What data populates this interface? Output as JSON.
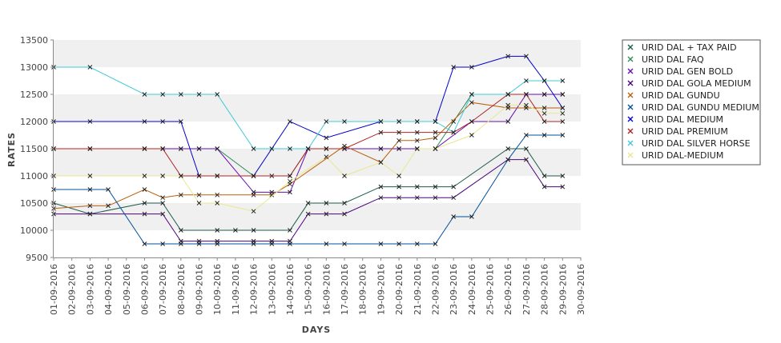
{
  "chart_data": {
    "type": "line",
    "xlabel": "DAYS",
    "ylabel": "RATES",
    "ylim": [
      9500,
      13500
    ],
    "y_ticks": [
      9500,
      10000,
      10500,
      11000,
      11500,
      12000,
      12500,
      13000,
      13500
    ],
    "grid": "alternating horizontal bands",
    "legend_position": "right",
    "categories": [
      "01-09-2016",
      "02-09-2016",
      "03-09-2016",
      "04-09-2016",
      "05-09-2016",
      "06-09-2016",
      "07-09-2016",
      "08-09-2016",
      "09-09-2016",
      "10-09-2016",
      "11-09-2016",
      "12-09-2016",
      "13-09-2016",
      "14-09-2016",
      "15-09-2016",
      "16-09-2016",
      "17-09-2016",
      "18-09-2016",
      "19-09-2016",
      "20-09-2016",
      "21-09-2016",
      "22-09-2016",
      "23-09-2016",
      "24-09-2016",
      "25-09-2016",
      "26-09-2016",
      "27-09-2016",
      "28-09-2016",
      "29-09-2016",
      "30-09-2016"
    ],
    "series": [
      {
        "name": "URID DAL + TAX PAID",
        "color": "#1a5c4a",
        "points": [
          [
            0,
            10500
          ],
          [
            2,
            10300
          ],
          [
            5,
            10500
          ],
          [
            6,
            10500
          ],
          [
            7,
            10000
          ],
          [
            9,
            10000
          ],
          [
            10,
            10000
          ],
          [
            11,
            10000
          ],
          [
            13,
            10000
          ],
          [
            14,
            10500
          ],
          [
            15,
            10500
          ],
          [
            16,
            10500
          ],
          [
            18,
            10800
          ],
          [
            19,
            10800
          ],
          [
            20,
            10800
          ],
          [
            21,
            10800
          ],
          [
            22,
            10800
          ],
          [
            25,
            11500
          ],
          [
            26,
            11500
          ],
          [
            27,
            11000
          ],
          [
            28,
            11000
          ]
        ]
      },
      {
        "name": "URID DAL FAQ",
        "color": "#2e8b57",
        "points": [
          [
            0,
            11500
          ],
          [
            2,
            11500
          ],
          [
            5,
            11500
          ],
          [
            6,
            11500
          ],
          [
            7,
            11500
          ],
          [
            8,
            11500
          ],
          [
            9,
            11500
          ],
          [
            11,
            11000
          ],
          [
            12,
            11000
          ],
          [
            13,
            11000
          ],
          [
            14,
            11500
          ],
          [
            15,
            11500
          ],
          [
            16,
            11500
          ],
          [
            18,
            11500
          ],
          [
            19,
            11500
          ],
          [
            20,
            11500
          ],
          [
            21,
            11500
          ],
          [
            22,
            12000
          ],
          [
            23,
            12500
          ],
          [
            25,
            12500
          ],
          [
            26,
            12500
          ],
          [
            27,
            12500
          ],
          [
            28,
            12500
          ]
        ]
      },
      {
        "name": "URID DAL GEN BOLD",
        "color": "#6a0dad",
        "points": [
          [
            0,
            11500
          ],
          [
            2,
            11500
          ],
          [
            5,
            11500
          ],
          [
            6,
            11500
          ],
          [
            7,
            11500
          ],
          [
            8,
            11500
          ],
          [
            9,
            11500
          ],
          [
            11,
            10700
          ],
          [
            12,
            10700
          ],
          [
            13,
            10700
          ],
          [
            14,
            11500
          ],
          [
            15,
            11500
          ],
          [
            16,
            11500
          ],
          [
            18,
            11500
          ],
          [
            19,
            11500
          ],
          [
            20,
            11500
          ],
          [
            21,
            11500
          ],
          [
            23,
            12000
          ],
          [
            25,
            12000
          ],
          [
            26,
            12500
          ],
          [
            27,
            12500
          ],
          [
            28,
            12500
          ]
        ]
      },
      {
        "name": "URID DAL GOLA MEDIUM",
        "color": "#4b0082",
        "points": [
          [
            0,
            10300
          ],
          [
            2,
            10300
          ],
          [
            5,
            10300
          ],
          [
            6,
            10300
          ],
          [
            7,
            9800
          ],
          [
            8,
            9800
          ],
          [
            9,
            9800
          ],
          [
            11,
            9800
          ],
          [
            12,
            9800
          ],
          [
            13,
            9800
          ],
          [
            14,
            10300
          ],
          [
            15,
            10300
          ],
          [
            16,
            10300
          ],
          [
            18,
            10600
          ],
          [
            19,
            10600
          ],
          [
            20,
            10600
          ],
          [
            21,
            10600
          ],
          [
            22,
            10600
          ],
          [
            25,
            11300
          ],
          [
            26,
            11300
          ],
          [
            27,
            10800
          ],
          [
            28,
            10800
          ]
        ]
      },
      {
        "name": "URID DAL GUNDU",
        "color": "#b8600b",
        "points": [
          [
            0,
            10400
          ],
          [
            2,
            10450
          ],
          [
            3,
            10450
          ],
          [
            5,
            10750
          ],
          [
            6,
            10600
          ],
          [
            7,
            10650
          ],
          [
            8,
            10650
          ],
          [
            9,
            10650
          ],
          [
            11,
            10650
          ],
          [
            12,
            10650
          ],
          [
            13,
            10850
          ],
          [
            16,
            11550
          ],
          [
            18,
            11250
          ],
          [
            19,
            11650
          ],
          [
            20,
            11650
          ],
          [
            21,
            11700
          ],
          [
            23,
            12350
          ],
          [
            25,
            12250
          ],
          [
            26,
            12250
          ],
          [
            27,
            12250
          ],
          [
            28,
            12250
          ]
        ]
      },
      {
        "name": "URID DAL GUNDU MEDIUM",
        "color": "#00509e",
        "points": [
          [
            0,
            10750
          ],
          [
            2,
            10750
          ],
          [
            3,
            10750
          ],
          [
            5,
            9750
          ],
          [
            6,
            9750
          ],
          [
            7,
            9750
          ],
          [
            8,
            9750
          ],
          [
            9,
            9750
          ],
          [
            11,
            9750
          ],
          [
            12,
            9750
          ],
          [
            13,
            9750
          ],
          [
            15,
            9750
          ],
          [
            16,
            9750
          ],
          [
            18,
            9750
          ],
          [
            19,
            9750
          ],
          [
            20,
            9750
          ],
          [
            21,
            9750
          ],
          [
            22,
            10250
          ],
          [
            23,
            10250
          ],
          [
            25,
            11300
          ],
          [
            26,
            11750
          ],
          [
            27,
            11750
          ],
          [
            28,
            11750
          ]
        ]
      },
      {
        "name": "URID DAL MEDIUM",
        "color": "#0000cd",
        "points": [
          [
            0,
            12000
          ],
          [
            2,
            12000
          ],
          [
            5,
            12000
          ],
          [
            6,
            12000
          ],
          [
            7,
            12000
          ],
          [
            8,
            11000
          ],
          [
            9,
            11000
          ],
          [
            11,
            11000
          ],
          [
            13,
            12000
          ],
          [
            15,
            11700
          ],
          [
            18,
            12000
          ],
          [
            19,
            12000
          ],
          [
            20,
            12000
          ],
          [
            21,
            12000
          ],
          [
            22,
            13000
          ],
          [
            23,
            13000
          ],
          [
            25,
            13200
          ],
          [
            26,
            13200
          ],
          [
            27,
            12750
          ],
          [
            28,
            12250
          ]
        ]
      },
      {
        "name": "URID DAL PREMIUM",
        "color": "#b22222",
        "points": [
          [
            0,
            11500
          ],
          [
            2,
            11500
          ],
          [
            5,
            11500
          ],
          [
            6,
            11500
          ],
          [
            7,
            11000
          ],
          [
            8,
            11000
          ],
          [
            9,
            11000
          ],
          [
            11,
            11000
          ],
          [
            13,
            11000
          ],
          [
            14,
            11500
          ],
          [
            15,
            11500
          ],
          [
            16,
            11500
          ],
          [
            18,
            11800
          ],
          [
            19,
            11800
          ],
          [
            20,
            11800
          ],
          [
            21,
            11800
          ],
          [
            22,
            11800
          ],
          [
            23,
            12000
          ],
          [
            25,
            12500
          ],
          [
            26,
            12500
          ],
          [
            27,
            12000
          ],
          [
            28,
            12000
          ]
        ]
      },
      {
        "name": "URID DAL SILVER HORSE",
        "color": "#40c8d8",
        "points": [
          [
            0,
            13000
          ],
          [
            2,
            13000
          ],
          [
            5,
            12500
          ],
          [
            6,
            12500
          ],
          [
            7,
            12500
          ],
          [
            8,
            12500
          ],
          [
            9,
            12500
          ],
          [
            11,
            11500
          ],
          [
            12,
            11500
          ],
          [
            13,
            11500
          ],
          [
            14,
            11500
          ],
          [
            15,
            12000
          ],
          [
            16,
            12000
          ],
          [
            18,
            12000
          ],
          [
            19,
            12000
          ],
          [
            20,
            12000
          ],
          [
            21,
            12000
          ],
          [
            22,
            11800
          ],
          [
            23,
            12500
          ],
          [
            25,
            12500
          ],
          [
            26,
            12750
          ],
          [
            27,
            12750
          ],
          [
            28,
            12750
          ]
        ]
      },
      {
        "name": "URID DAL-MEDIUM",
        "color": "#e8e890",
        "points": [
          [
            0,
            11000
          ],
          [
            2,
            11000
          ],
          [
            5,
            11000
          ],
          [
            6,
            11000
          ],
          [
            7,
            11000
          ],
          [
            8,
            10500
          ],
          [
            9,
            10500
          ],
          [
            11,
            10350
          ],
          [
            13,
            10900
          ],
          [
            15,
            11350
          ],
          [
            16,
            11000
          ],
          [
            18,
            11250
          ],
          [
            19,
            11000
          ],
          [
            20,
            11500
          ],
          [
            21,
            11500
          ],
          [
            23,
            11750
          ],
          [
            25,
            12300
          ],
          [
            26,
            12300
          ],
          [
            27,
            12150
          ],
          [
            28,
            12150
          ]
        ]
      }
    ]
  }
}
